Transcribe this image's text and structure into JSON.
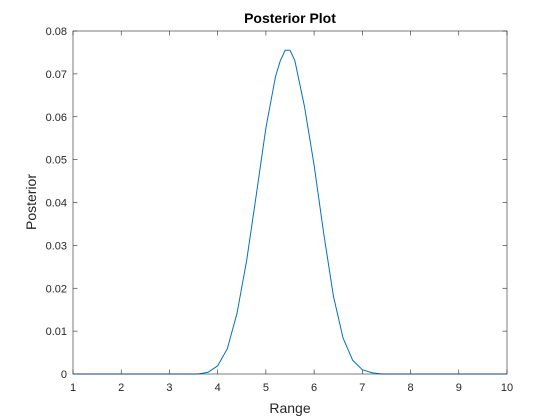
{
  "chart_data": {
    "type": "line",
    "title": "Posterior Plot",
    "xlabel": "Range",
    "ylabel": "Posterior",
    "xlim": [
      1,
      10
    ],
    "ylim": [
      0,
      0.08
    ],
    "xticks": [
      "1",
      "2",
      "3",
      "4",
      "5",
      "6",
      "7",
      "8",
      "9",
      "10"
    ],
    "yticks": [
      "0",
      "0.01",
      "0.02",
      "0.03",
      "0.04",
      "0.05",
      "0.06",
      "0.07",
      "0.08"
    ],
    "grid": false,
    "line_color": "#0072BD",
    "series": [
      {
        "x": [
          1.0,
          3.6,
          3.8,
          4.0,
          4.2,
          4.4,
          4.6,
          4.8,
          5.0,
          5.2,
          5.3,
          5.4,
          5.5,
          5.6,
          5.8,
          6.0,
          6.2,
          6.4,
          6.6,
          6.8,
          7.0,
          7.2,
          7.4,
          10.0
        ],
        "y": [
          0.0,
          0.0,
          0.0004,
          0.0019,
          0.0059,
          0.0141,
          0.0264,
          0.0417,
          0.0574,
          0.0694,
          0.0731,
          0.0755,
          0.0755,
          0.0731,
          0.0624,
          0.0487,
          0.0327,
          0.0182,
          0.0084,
          0.0032,
          0.001,
          0.0003,
          0.0,
          0.0
        ]
      }
    ]
  }
}
